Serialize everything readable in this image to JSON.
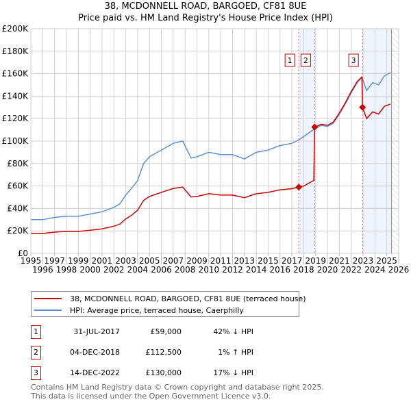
{
  "chart_data": {
    "type": "line",
    "title": "38, MCDONNELL ROAD, BARGOED, CF81 8UE",
    "subtitle": "Price paid vs. HM Land Registry's House Price Index (HPI)",
    "xlim": [
      1995,
      2026
    ],
    "ylim": [
      0,
      200000
    ],
    "x_ticks": [
      "1995",
      "1996",
      "1997",
      "1998",
      "1999",
      "2000",
      "2001",
      "2002",
      "2003",
      "2004",
      "2005",
      "2006",
      "2007",
      "2008",
      "2009",
      "2010",
      "2011",
      "2012",
      "2013",
      "2014",
      "2015",
      "2016",
      "2017",
      "2018",
      "2019",
      "2020",
      "2021",
      "2022",
      "2023",
      "2024",
      "2025",
      "2026"
    ],
    "y_ticks": [
      {
        "v": 0,
        "label": "£0"
      },
      {
        "v": 20000,
        "label": "£20K"
      },
      {
        "v": 40000,
        "label": "£40K"
      },
      {
        "v": 60000,
        "label": "£60K"
      },
      {
        "v": 80000,
        "label": "£80K"
      },
      {
        "v": 100000,
        "label": "£100K"
      },
      {
        "v": 120000,
        "label": "£120K"
      },
      {
        "v": 140000,
        "label": "£140K"
      },
      {
        "v": 160000,
        "label": "£160K"
      },
      {
        "v": 180000,
        "label": "£180K"
      },
      {
        "v": 200000,
        "label": "£200K"
      }
    ],
    "grid": true,
    "series": [
      {
        "name": "38, MCDONNELL ROAD, BARGOED, CF81 8UE (terraced house)",
        "color": "#cc0000",
        "x": [
          1995,
          1996,
          1997,
          1998,
          1999,
          2000,
          2001,
          2002,
          2002.5,
          2003,
          2003.5,
          2004,
          2004.5,
          2005,
          2006,
          2007,
          2007.8,
          2008.5,
          2009,
          2010,
          2011,
          2012,
          2013,
          2014,
          2015,
          2016,
          2017,
          2017.58,
          2018,
          2018.85,
          2018.92,
          2019.5,
          2020,
          2020.5,
          2021,
          2021.5,
          2022,
          2022.5,
          2022.9,
          2022.95,
          2023.3,
          2023.8,
          2024.3,
          2024.8,
          2025.3
        ],
        "y": [
          17700,
          17700,
          18900,
          19500,
          19500,
          20600,
          21800,
          24200,
          26000,
          30700,
          34000,
          38400,
          47200,
          50700,
          54300,
          57800,
          59000,
          50200,
          50700,
          53100,
          51900,
          51900,
          49600,
          53100,
          54300,
          56600,
          57600,
          59000,
          60000,
          65000,
          112500,
          115000,
          114000,
          117000,
          125000,
          134000,
          144000,
          153000,
          157000,
          130000,
          120000,
          126000,
          124000,
          131000,
          133000
        ]
      },
      {
        "name": "HPI: Average price, terraced house, Caerphilly",
        "color": "#5b8fd6",
        "x": [
          1995,
          1996,
          1997,
          1998,
          1999,
          2000,
          2001,
          2002,
          2002.5,
          2003,
          2003.5,
          2004,
          2004.5,
          2005,
          2006,
          2007,
          2007.8,
          2008.5,
          2009,
          2010,
          2011,
          2012,
          2013,
          2014,
          2015,
          2016,
          2017,
          2017.58,
          2018,
          2018.92,
          2019.5,
          2020,
          2020.5,
          2021,
          2021.5,
          2022,
          2022.5,
          2022.9,
          2023.3,
          2023.8,
          2024.3,
          2024.8,
          2025.3
        ],
        "y": [
          30000,
          30000,
          32000,
          33000,
          33000,
          35000,
          37000,
          41000,
          44000,
          52000,
          58000,
          65000,
          80000,
          86000,
          92000,
          98000,
          100000,
          85000,
          86000,
          90000,
          88000,
          88000,
          84000,
          90000,
          92000,
          96000,
          98000,
          101000,
          104000,
          111000,
          114000,
          113000,
          116000,
          124000,
          133000,
          143000,
          152000,
          157000,
          145000,
          152000,
          150000,
          158000,
          161000
        ]
      }
    ],
    "sales": [
      {
        "n": "1",
        "x": 2017.58,
        "y": 59000
      },
      {
        "n": "2",
        "x": 2018.92,
        "y": 112500
      },
      {
        "n": "3",
        "x": 2022.95,
        "y": 130000
      }
    ],
    "shaded": [
      [
        2017.58,
        2018.92
      ],
      [
        2022.95,
        2025.4
      ]
    ],
    "hatched_after": 2025.4
  },
  "legend": {
    "items": [
      "38, MCDONNELL ROAD, BARGOED, CF81 8UE (terraced house)",
      "HPI: Average price, terraced house, Caerphilly"
    ]
  },
  "table": [
    {
      "n": "1",
      "date": "31-JUL-2017",
      "price": "£59,000",
      "hpi": "42% ↓ HPI"
    },
    {
      "n": "2",
      "date": "04-DEC-2018",
      "price": "£112,500",
      "hpi": "1% ↑ HPI"
    },
    {
      "n": "3",
      "date": "14-DEC-2022",
      "price": "£130,000",
      "hpi": "17% ↓ HPI"
    }
  ],
  "footer": [
    "Contains HM Land Registry data © Crown copyright and database right 2025.",
    "This data is licensed under the Open Government Licence v3.0."
  ]
}
